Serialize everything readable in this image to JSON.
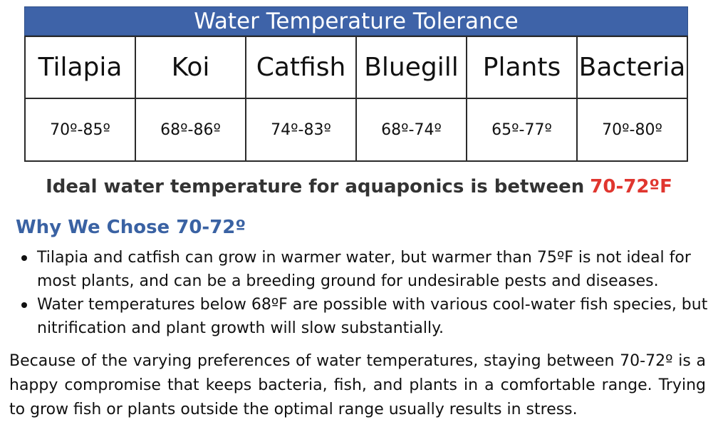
{
  "table": {
    "title": "Water Temperature Tolerance",
    "columns": [
      {
        "name": "Tilapia",
        "range": "70º-85º"
      },
      {
        "name": "Koi",
        "range": "68º-86º"
      },
      {
        "name": "Catfish",
        "range": "74º-83º"
      },
      {
        "name": "Bluegill",
        "range": "68º-74º"
      },
      {
        "name": "Plants",
        "range": "65º-77º"
      },
      {
        "name": "Bacteria",
        "range": "70º-80º"
      }
    ]
  },
  "ideal": {
    "text": "Ideal water temperature for aquaponics is between",
    "highlight": "70-72ºF",
    "highlight_color": "#e0362f"
  },
  "why": {
    "heading": "Why We Chose 70-72º",
    "bullets": [
      "Tilapia and catfish can grow in warmer water, but warmer than 75ºF is not ideal for most plants, and can be a breeding ground for undesirable pests and diseases.",
      "Water temperatures below 68ºF are possible with various cool-water fish species, but nitrification and plant growth will slow substantially."
    ]
  },
  "paragraph": "Because of the varying preferences of water temperatures, staying between 70-72º is a happy compromise that keeps bacteria, fish, and plants in a comfortable range. Trying to grow fish or plants outside the optimal range usually results in stress.",
  "colors": {
    "title_bar": "#3e63a8",
    "heading": "#3a62a3"
  }
}
